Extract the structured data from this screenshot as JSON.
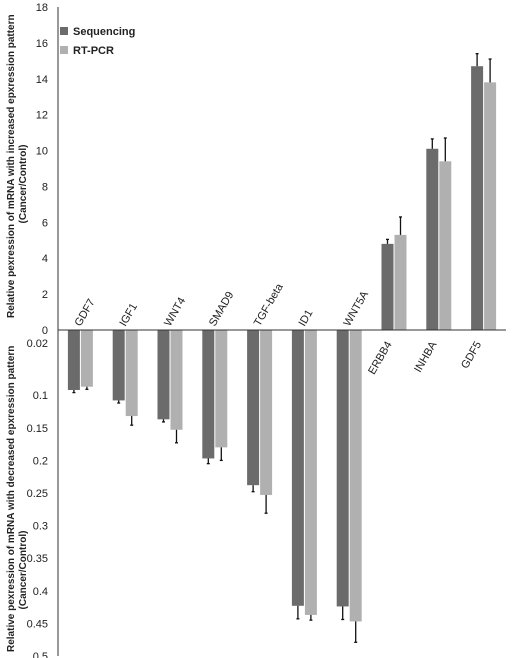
{
  "chart_data": {
    "type": "bar",
    "title": "",
    "ylabel_upper": "Relative pexression of mRNA with increased epxression pattern",
    "ylabel_upper_sub": "(Cancer/Control)",
    "ylabel_lower": "Relative pexression of mRNA with decreased epxression pattern",
    "ylabel_lower_sub": "(Cancer/Control)",
    "upper_ylim": [
      0,
      18
    ],
    "upper_ticks": [
      "0",
      "2",
      "4",
      "6",
      "8",
      "10",
      "12",
      "14",
      "16",
      "18"
    ],
    "lower_ylim": [
      0,
      0.5
    ],
    "lower_ticks": [
      "0.02",
      "0.1",
      "0.15",
      "0.2",
      "0.25",
      "0.3",
      "0.35",
      "0.4",
      "0.45",
      "0.5"
    ],
    "categories": [
      "GDF7",
      "IGF1",
      "WNT4",
      "SMAD9",
      "TGF-beta",
      "ID1",
      "WNT5A",
      "ERBB4",
      "INHBA",
      "GDF5"
    ],
    "direction": [
      "decreased",
      "decreased",
      "decreased",
      "decreased",
      "decreased",
      "decreased",
      "decreased",
      "increased",
      "increased",
      "increased"
    ],
    "series": [
      {
        "name": "Sequencing",
        "color": "#6b6b6b",
        "values": [
          0.092,
          0.108,
          0.137,
          0.197,
          0.238,
          0.423,
          0.424,
          4.8,
          10.1,
          14.7
        ],
        "errors": [
          0.004,
          0.004,
          0.004,
          0.008,
          0.01,
          0.02,
          0.02,
          0.25,
          0.55,
          0.7
        ]
      },
      {
        "name": "RT-PCR",
        "color": "#b0b0b0",
        "values": [
          0.087,
          0.132,
          0.153,
          0.18,
          0.253,
          0.437,
          0.447,
          5.3,
          9.4,
          13.8
        ],
        "errors": [
          0.004,
          0.014,
          0.02,
          0.02,
          0.028,
          0.008,
          0.032,
          1.0,
          1.3,
          1.3
        ]
      }
    ],
    "legend_position": "top-left",
    "grid": false
  }
}
